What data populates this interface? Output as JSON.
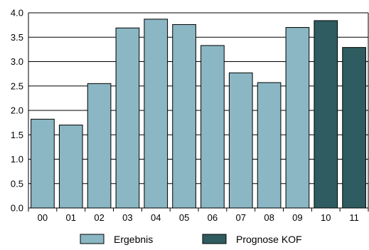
{
  "chart_data": {
    "type": "bar",
    "categories": [
      "00",
      "01",
      "02",
      "03",
      "04",
      "05",
      "06",
      "07",
      "08",
      "09",
      "10",
      "11"
    ],
    "values": [
      1.82,
      1.7,
      2.55,
      3.69,
      3.87,
      3.76,
      3.33,
      2.77,
      2.57,
      3.7,
      3.84,
      3.29
    ],
    "value_type": [
      "Ergebnis",
      "Ergebnis",
      "Ergebnis",
      "Ergebnis",
      "Ergebnis",
      "Ergebnis",
      "Ergebnis",
      "Ergebnis",
      "Ergebnis",
      "Ergebnis",
      "Prognose KOF",
      "Prognose KOF"
    ],
    "ylim": [
      0,
      4.0
    ],
    "yticks": [
      "0.0",
      "0.5",
      "1.0",
      "1.5",
      "2.0",
      "2.5",
      "3.0",
      "3.5",
      "4.0"
    ],
    "grid": "horizontal",
    "legend_position": "bottom",
    "legend": [
      {
        "name": "Ergebnis",
        "color": "#8ab7c3"
      },
      {
        "name": "Prognose KOF",
        "color": "#2f5c60"
      }
    ],
    "colors": {
      "Ergebnis": "#8ab7c3",
      "Prognose KOF": "#2f5c60",
      "bar_edge": "#000000"
    }
  }
}
